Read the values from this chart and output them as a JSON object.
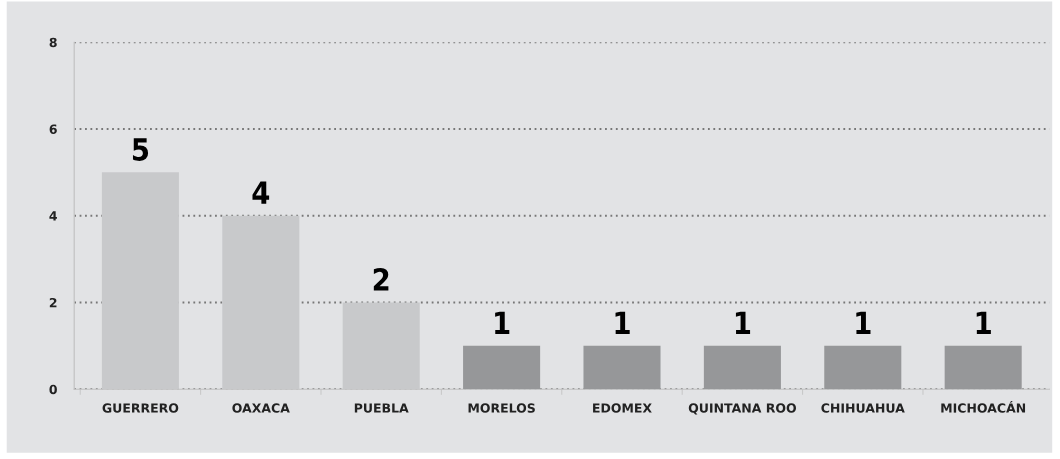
{
  "chart_data": {
    "type": "bar",
    "categories": [
      "GUERRERO",
      "OAXACA",
      "PUEBLA",
      "MORELOS",
      "EDOMEX",
      "QUINTANA ROO",
      "CHIHUAHUA",
      "MICHOACÁN"
    ],
    "values": [
      5,
      4,
      2,
      1,
      1,
      1,
      1,
      1
    ],
    "colors": [
      "#c8c9cb",
      "#c8c9cb",
      "#c8c9cb",
      "#969799",
      "#969799",
      "#969799",
      "#969799",
      "#969799"
    ],
    "ylim": [
      0,
      8
    ],
    "yticks": [
      0,
      2,
      4,
      6,
      8
    ],
    "grid": "y",
    "line_style": "dotted",
    "data_labels": true
  }
}
